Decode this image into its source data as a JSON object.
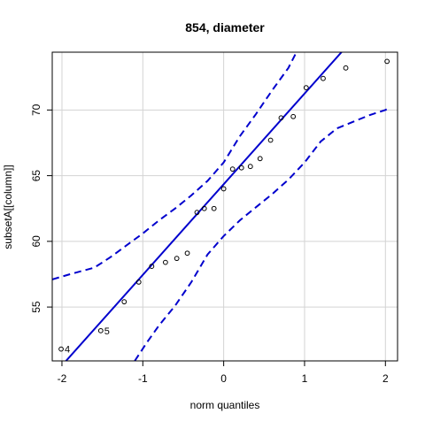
{
  "chart_data": {
    "type": "scatter",
    "title": "854, diameter",
    "xlabel": "norm quantiles",
    "ylabel": "subsetA[[column]]",
    "xlim": [
      -2.12,
      2.15
    ],
    "ylim": [
      50.9,
      74.4
    ],
    "x_ticks": [
      -2,
      -1,
      0,
      1,
      2
    ],
    "y_ticks": [
      55,
      60,
      65,
      70
    ],
    "x_tick_labels": [
      "-2",
      "-1",
      "0",
      "1",
      "2"
    ],
    "y_tick_labels": [
      "55",
      "60",
      "65",
      "70"
    ],
    "grid": true,
    "colors": {
      "points": "#000000",
      "reference_line": "#0000cd",
      "envelope": "#0000cd",
      "grid": "#d3d3d3"
    },
    "points": [
      {
        "x": -2.01,
        "y": 51.8,
        "label": "4"
      },
      {
        "x": -1.52,
        "y": 53.2,
        "label": "5"
      },
      {
        "x": -1.23,
        "y": 55.4
      },
      {
        "x": -1.05,
        "y": 56.9
      },
      {
        "x": -0.89,
        "y": 58.1
      },
      {
        "x": -0.72,
        "y": 58.4
      },
      {
        "x": -0.58,
        "y": 58.7
      },
      {
        "x": -0.45,
        "y": 59.1
      },
      {
        "x": -0.33,
        "y": 62.2
      },
      {
        "x": -0.24,
        "y": 62.5
      },
      {
        "x": -0.12,
        "y": 62.5
      },
      {
        "x": 0.0,
        "y": 64.0
      },
      {
        "x": 0.11,
        "y": 65.5
      },
      {
        "x": 0.22,
        "y": 65.6
      },
      {
        "x": 0.33,
        "y": 65.7
      },
      {
        "x": 0.45,
        "y": 66.3
      },
      {
        "x": 0.58,
        "y": 67.7
      },
      {
        "x": 0.71,
        "y": 69.4
      },
      {
        "x": 0.86,
        "y": 69.5
      },
      {
        "x": 1.02,
        "y": 71.7
      },
      {
        "x": 1.23,
        "y": 72.4
      },
      {
        "x": 1.51,
        "y": 73.2
      },
      {
        "x": 2.02,
        "y": 73.7
      }
    ],
    "reference_line": {
      "intercept": 64.35,
      "slope": 6.9
    },
    "envelope_upper": [
      {
        "x": -2.12,
        "y": 57.1
      },
      {
        "x": -1.9,
        "y": 57.5
      },
      {
        "x": -1.6,
        "y": 58.0
      },
      {
        "x": -1.4,
        "y": 58.8
      },
      {
        "x": -1.2,
        "y": 59.7
      },
      {
        "x": -1.0,
        "y": 60.6
      },
      {
        "x": -0.8,
        "y": 61.6
      },
      {
        "x": -0.6,
        "y": 62.5
      },
      {
        "x": -0.4,
        "y": 63.5
      },
      {
        "x": -0.2,
        "y": 64.6
      },
      {
        "x": 0.0,
        "y": 66.0
      },
      {
        "x": 0.2,
        "y": 68.0
      },
      {
        "x": 0.4,
        "y": 69.7
      },
      {
        "x": 0.6,
        "y": 71.5
      },
      {
        "x": 0.8,
        "y": 73.2
      },
      {
        "x": 0.9,
        "y": 74.4
      }
    ],
    "envelope_lower": [
      {
        "x": -1.1,
        "y": 50.9
      },
      {
        "x": -0.95,
        "y": 52.3
      },
      {
        "x": -0.8,
        "y": 53.6
      },
      {
        "x": -0.6,
        "y": 55.1
      },
      {
        "x": -0.4,
        "y": 56.9
      },
      {
        "x": -0.2,
        "y": 59.0
      },
      {
        "x": 0.0,
        "y": 60.4
      },
      {
        "x": 0.2,
        "y": 61.6
      },
      {
        "x": 0.4,
        "y": 62.6
      },
      {
        "x": 0.6,
        "y": 63.6
      },
      {
        "x": 0.8,
        "y": 64.7
      },
      {
        "x": 1.0,
        "y": 66.0
      },
      {
        "x": 1.2,
        "y": 67.6
      },
      {
        "x": 1.4,
        "y": 68.6
      },
      {
        "x": 1.6,
        "y": 69.1
      },
      {
        "x": 1.8,
        "y": 69.6
      },
      {
        "x": 2.0,
        "y": 70.0
      },
      {
        "x": 2.03,
        "y": 70.1
      }
    ]
  }
}
